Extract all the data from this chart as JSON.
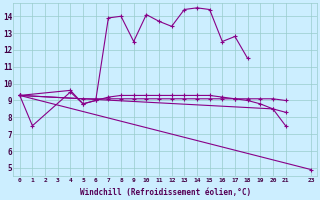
{
  "xlabel": "Windchill (Refroidissement éolien,°C)",
  "bg_color": "#cceeff",
  "line_color": "#880088",
  "grid_color": "#99cccc",
  "xlim": [
    -0.5,
    23.5
  ],
  "ylim": [
    4.5,
    14.8
  ],
  "xtick_vals": [
    0,
    1,
    2,
    3,
    4,
    5,
    6,
    7,
    8,
    9,
    10,
    11,
    12,
    13,
    14,
    15,
    16,
    17,
    18,
    19,
    20,
    21,
    23
  ],
  "xtick_labels": [
    "0",
    "1",
    "2",
    "3",
    "4",
    "5",
    "6",
    "7",
    "8",
    "9",
    "10",
    "11",
    "12",
    "13",
    "14",
    "15",
    "16",
    "17",
    "18",
    "19",
    "20",
    "21",
    "23"
  ],
  "ytick_vals": [
    5,
    6,
    7,
    8,
    9,
    10,
    11,
    12,
    13,
    14
  ],
  "series": [
    {
      "x": [
        0,
        1,
        4,
        5,
        6,
        7,
        8,
        9,
        10,
        11,
        12,
        13,
        14,
        15,
        16,
        17,
        18,
        19,
        20,
        21
      ],
      "y": [
        9.3,
        7.5,
        9.5,
        8.8,
        9.0,
        9.2,
        9.3,
        9.3,
        9.3,
        9.3,
        9.3,
        9.3,
        9.3,
        9.3,
        9.2,
        9.1,
        9.0,
        8.8,
        8.5,
        8.3
      ]
    },
    {
      "x": [
        0,
        5,
        6,
        7,
        8,
        9,
        10,
        11,
        12,
        13,
        14,
        15,
        16,
        17,
        18,
        19,
        20,
        21
      ],
      "y": [
        9.3,
        9.1,
        9.1,
        9.1,
        9.1,
        9.1,
        9.1,
        9.1,
        9.1,
        9.1,
        9.1,
        9.1,
        9.1,
        9.1,
        9.1,
        9.1,
        9.1,
        9.0
      ]
    },
    {
      "x": [
        0,
        4,
        5,
        6,
        7,
        8,
        9,
        10,
        11,
        12,
        13,
        14,
        15,
        16,
        17,
        18
      ],
      "y": [
        9.3,
        9.6,
        8.8,
        9.0,
        13.9,
        14.0,
        12.5,
        14.1,
        13.7,
        13.4,
        14.4,
        14.5,
        14.4,
        12.5,
        12.8,
        11.5
      ]
    },
    {
      "x": [
        0,
        23
      ],
      "y": [
        9.3,
        4.9
      ]
    },
    {
      "x": [
        0,
        20,
        21
      ],
      "y": [
        9.3,
        8.5,
        7.5
      ]
    }
  ]
}
